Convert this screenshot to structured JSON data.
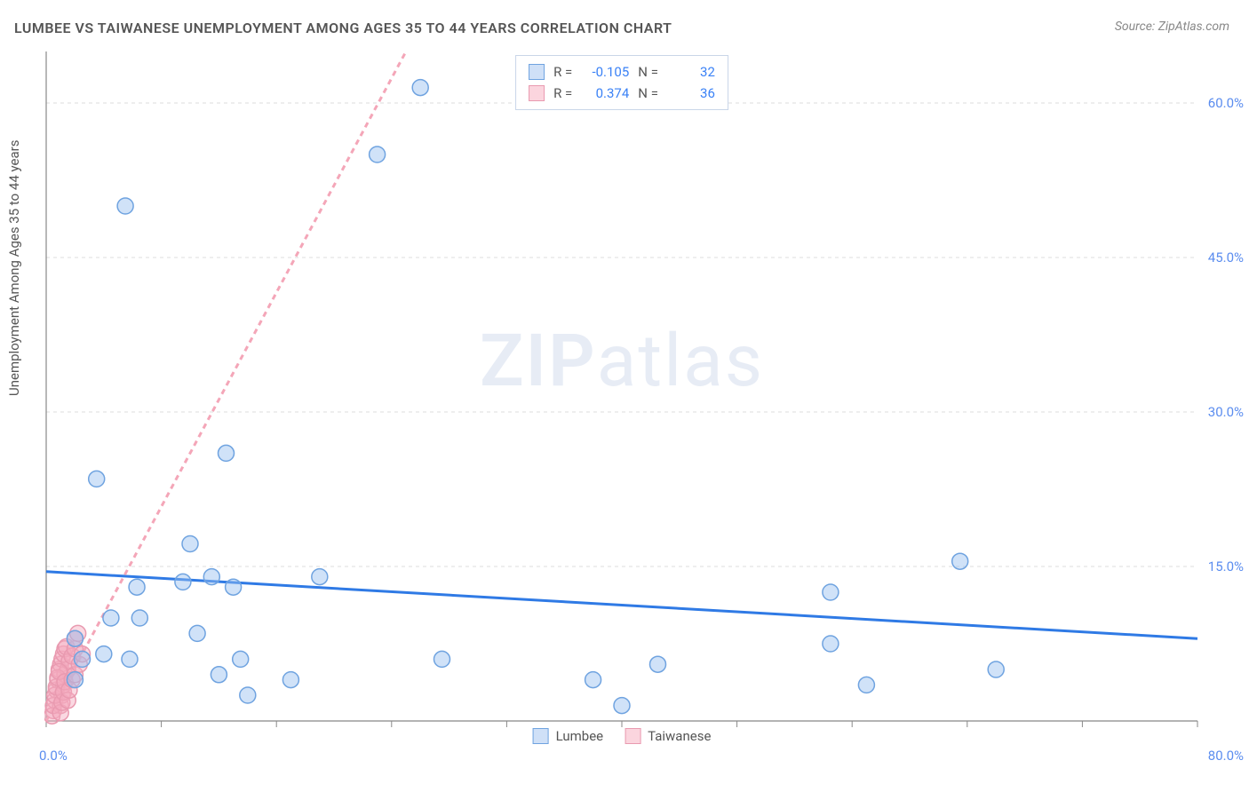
{
  "title": "LUMBEE VS TAIWANESE UNEMPLOYMENT AMONG AGES 35 TO 44 YEARS CORRELATION CHART",
  "source": "Source: ZipAtlas.com",
  "y_axis_label": "Unemployment Among Ages 35 to 44 years",
  "watermark": {
    "bold": "ZIP",
    "rest": "atlas"
  },
  "chart": {
    "type": "scatter",
    "background_color": "#ffffff",
    "axis_color": "#888888",
    "grid_color": "#dddddd",
    "grid_dash": "4 4",
    "tick_color": "#888888",
    "xlim": [
      0,
      80
    ],
    "ylim": [
      0,
      65
    ],
    "x_ticks": [
      0,
      8,
      16,
      24,
      32,
      40,
      48,
      56,
      64,
      72,
      80
    ],
    "y_grid_lines": [
      15,
      30,
      45,
      60
    ],
    "y_tick_labels": [
      "15.0%",
      "30.0%",
      "45.0%",
      "60.0%"
    ],
    "x_origin_label": "0.0%",
    "x_max_label": "80.0%",
    "label_color": "#5b8def",
    "label_fontsize": 15,
    "marker_radius": 9,
    "marker_stroke_width": 1.5,
    "trend_line_width": 3,
    "trend_line_dash_secondary": "6 5"
  },
  "stats_legend": {
    "rows": [
      {
        "swatch_fill": "#cfe0f7",
        "swatch_stroke": "#6fa3e0",
        "r_label": "R =",
        "r_value": "-0.105",
        "n_label": "N =",
        "n_value": "32"
      },
      {
        "swatch_fill": "#fbd5de",
        "swatch_stroke": "#e99ab0",
        "r_label": "R =",
        "r_value": "0.374",
        "n_label": "N =",
        "n_value": "36"
      }
    ]
  },
  "series_legend": {
    "items": [
      {
        "swatch_fill": "#cfe0f7",
        "swatch_stroke": "#6fa3e0",
        "label": "Lumbee"
      },
      {
        "swatch_fill": "#fbd5de",
        "swatch_stroke": "#e99ab0",
        "label": "Taiwanese"
      }
    ]
  },
  "series": [
    {
      "name": "Lumbee",
      "point_fill": "rgba(150,190,240,0.45)",
      "point_stroke": "#6fa3e0",
      "trend_color": "#2f7ae5",
      "trend_style": "solid",
      "trend": {
        "x1": 0,
        "y1": 14.5,
        "x2": 80,
        "y2": 8.0
      },
      "points": [
        [
          23.0,
          55.0
        ],
        [
          5.5,
          50.0
        ],
        [
          26.0,
          61.5
        ],
        [
          12.5,
          26.0
        ],
        [
          3.5,
          23.5
        ],
        [
          10.0,
          17.2
        ],
        [
          6.3,
          13.0
        ],
        [
          9.5,
          13.5
        ],
        [
          11.5,
          14.0
        ],
        [
          13.0,
          13.0
        ],
        [
          19.0,
          14.0
        ],
        [
          4.5,
          10.0
        ],
        [
          6.5,
          10.0
        ],
        [
          2.0,
          8.0
        ],
        [
          2.5,
          6.0
        ],
        [
          4.0,
          6.5
        ],
        [
          5.8,
          6.0
        ],
        [
          10.5,
          8.5
        ],
        [
          2.0,
          4.0
        ],
        [
          12.0,
          4.5
        ],
        [
          14.0,
          2.5
        ],
        [
          17.0,
          4.0
        ],
        [
          13.5,
          6.0
        ],
        [
          27.5,
          6.0
        ],
        [
          38.0,
          4.0
        ],
        [
          42.5,
          5.5
        ],
        [
          40.0,
          1.5
        ],
        [
          54.5,
          7.5
        ],
        [
          54.5,
          12.5
        ],
        [
          57.0,
          3.5
        ],
        [
          63.5,
          15.5
        ],
        [
          66.0,
          5.0
        ]
      ]
    },
    {
      "name": "Taiwanese",
      "point_fill": "rgba(245,170,190,0.45)",
      "point_stroke": "#e99ab0",
      "trend_color": "#f4a6b8",
      "trend_style": "dashed",
      "trend": {
        "x1": 0,
        "y1": 0.0,
        "x2": 25.0,
        "y2": 65.0
      },
      "points": [
        [
          0.5,
          1.0
        ],
        [
          0.6,
          2.0
        ],
        [
          0.7,
          3.0
        ],
        [
          0.8,
          4.0
        ],
        [
          0.9,
          5.0
        ],
        [
          1.0,
          5.5
        ],
        [
          1.1,
          6.0
        ],
        [
          1.2,
          6.5
        ],
        [
          1.3,
          7.0
        ],
        [
          1.4,
          7.2
        ],
        [
          1.0,
          1.5
        ],
        [
          1.1,
          2.5
        ],
        [
          1.2,
          3.5
        ],
        [
          1.3,
          4.5
        ],
        [
          1.5,
          5.0
        ],
        [
          1.6,
          5.8
        ],
        [
          1.8,
          6.3
        ],
        [
          2.0,
          7.0
        ],
        [
          2.0,
          8.0
        ],
        [
          2.2,
          8.5
        ],
        [
          0.4,
          0.5
        ],
        [
          0.5,
          1.5
        ],
        [
          0.6,
          2.5
        ],
        [
          0.7,
          3.3
        ],
        [
          0.8,
          4.2
        ],
        [
          0.9,
          4.8
        ],
        [
          1.0,
          0.8
        ],
        [
          1.1,
          1.8
        ],
        [
          1.2,
          2.8
        ],
        [
          1.3,
          3.8
        ],
        [
          1.5,
          2.0
        ],
        [
          1.6,
          3.0
        ],
        [
          1.8,
          4.0
        ],
        [
          2.0,
          4.5
        ],
        [
          2.3,
          5.5
        ],
        [
          2.5,
          6.5
        ]
      ]
    }
  ]
}
